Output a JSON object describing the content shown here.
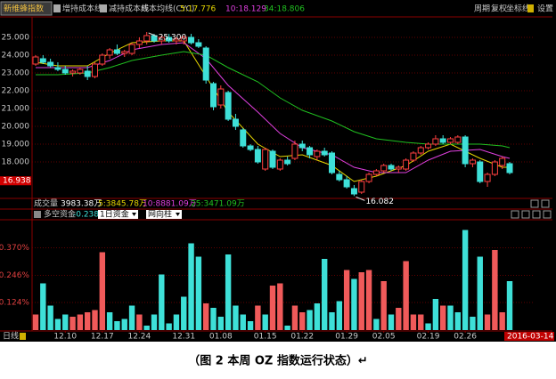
{
  "toolbar": {
    "index_name": "新维蜂指数",
    "items": [
      "增持成本线",
      "减持成本线",
      "成本均线(CYC)"
    ],
    "right": [
      "周期",
      "复权",
      "坐标线",
      "设置"
    ]
  },
  "chart_data": {
    "type": "candlestick",
    "categories": [
      null,
      null,
      null,
      null,
      "12.10",
      null,
      null,
      null,
      null,
      "12.17",
      null,
      null,
      null,
      null,
      "12.24",
      null,
      null,
      null,
      null,
      null,
      "12.31",
      null,
      null,
      null,
      null,
      "01.08",
      null,
      null,
      null,
      null,
      null,
      "01.15",
      null,
      null,
      null,
      null,
      "01.22",
      null,
      null,
      null,
      null,
      null,
      "01.29",
      null,
      null,
      null,
      null,
      "02.05",
      null,
      null,
      null,
      null,
      null,
      "02.19",
      null,
      null,
      null,
      null,
      "02.26",
      null,
      null,
      null,
      null,
      null,
      null
    ],
    "open": [
      23.5,
      23.8,
      23.6,
      23.3,
      23.2,
      23.0,
      23.0,
      23.1,
      22.8,
      23.5,
      24.0,
      24.3,
      24.1,
      24.1,
      24.6,
      24.8,
      25.1,
      24.8,
      25.0,
      24.8,
      24.8,
      25.0,
      24.7,
      24.4,
      22.4,
      21.2,
      21.9,
      20.4,
      19.8,
      18.9,
      18.7,
      17.6,
      18.6,
      17.6,
      18.1,
      18.2,
      19.0,
      18.8,
      18.3,
      18.6,
      18.5,
      17.3,
      17.0,
      16.5,
      16.3,
      16.9,
      17.3,
      17.5,
      17.8,
      17.6,
      17.6,
      18.1,
      18.5,
      18.8,
      19.0,
      19.3,
      19.1,
      19.1,
      19.4,
      17.9,
      18.0,
      16.9,
      17.3,
      17.8,
      17.9
    ],
    "high": [
      24.0,
      24.0,
      23.8,
      23.6,
      23.4,
      23.2,
      23.3,
      23.4,
      23.6,
      24.1,
      24.4,
      24.6,
      24.3,
      24.7,
      25.0,
      25.3,
      25.2,
      25.1,
      25.2,
      25.0,
      25.1,
      25.2,
      24.9,
      24.5,
      22.5,
      22.3,
      22.0,
      20.7,
      19.9,
      19.0,
      18.9,
      18.8,
      18.7,
      18.2,
      18.3,
      19.2,
      19.2,
      18.9,
      18.7,
      18.8,
      18.6,
      17.5,
      17.2,
      16.7,
      17.0,
      17.4,
      17.6,
      17.9,
      17.9,
      17.8,
      18.2,
      18.6,
      18.9,
      19.1,
      19.5,
      19.5,
      19.4,
      19.5,
      19.5,
      18.2,
      18.1,
      17.4,
      18.1,
      18.3,
      18.0
    ],
    "low": [
      23.4,
      23.5,
      23.3,
      23.1,
      22.9,
      22.8,
      22.9,
      22.6,
      22.7,
      23.4,
      23.8,
      24.0,
      23.9,
      24.0,
      24.4,
      24.6,
      24.7,
      24.6,
      24.7,
      24.6,
      24.6,
      24.6,
      24.4,
      22.4,
      20.9,
      21.0,
      20.3,
      19.8,
      18.8,
      18.6,
      17.9,
      17.5,
      17.6,
      17.5,
      17.8,
      18.1,
      18.6,
      18.2,
      18.1,
      18.3,
      17.3,
      16.9,
      16.5,
      16.082,
      16.2,
      16.8,
      17.2,
      17.4,
      17.5,
      17.4,
      17.5,
      18.0,
      18.4,
      18.7,
      18.9,
      19.0,
      19.0,
      19.0,
      17.7,
      17.7,
      16.8,
      16.6,
      17.2,
      17.6,
      17.3
    ],
    "close": [
      23.9,
      23.6,
      23.4,
      23.2,
      23.0,
      23.1,
      23.2,
      22.8,
      23.5,
      24.0,
      24.3,
      24.1,
      24.2,
      24.6,
      24.8,
      25.1,
      24.8,
      25.0,
      24.8,
      24.9,
      25.0,
      24.7,
      24.5,
      22.6,
      21.1,
      22.1,
      20.4,
      20.0,
      18.9,
      18.7,
      18.0,
      18.7,
      17.7,
      18.1,
      17.9,
      19.0,
      18.8,
      18.4,
      18.6,
      18.4,
      17.4,
      17.0,
      16.6,
      16.2,
      16.9,
      17.3,
      17.5,
      17.8,
      17.6,
      17.7,
      18.1,
      18.5,
      18.8,
      19.0,
      19.3,
      19.1,
      19.3,
      19.4,
      17.9,
      18.1,
      16.9,
      17.3,
      18.0,
      18.2,
      17.4
    ],
    "up_color": "#ff4040",
    "down_color": "#3ee0d8",
    "ylim": [
      16,
      26
    ],
    "yticks": [
      {
        "value": 25,
        "label": "25.000"
      },
      {
        "value": 24,
        "label": "24.000"
      },
      {
        "value": 23,
        "label": "23.000"
      },
      {
        "value": 22,
        "label": "22.000"
      },
      {
        "value": 21,
        "label": "21.000"
      },
      {
        "value": 20,
        "label": "20.000"
      },
      {
        "value": 19,
        "label": "19.000"
      },
      {
        "value": 18,
        "label": "18.000"
      }
    ],
    "current_price": 16.938,
    "lines": [
      {
        "label": "5:17.776",
        "color": "#e8d800",
        "x": [
          0,
          3,
          7,
          10,
          13,
          17,
          20,
          23,
          26,
          30,
          33,
          36,
          40,
          43,
          46,
          50,
          53,
          56,
          60,
          63,
          64
        ],
        "values": [
          23.6,
          23.4,
          23.4,
          24.1,
          24.7,
          24.8,
          24.8,
          22.8,
          20.8,
          19.0,
          18.3,
          18.4,
          17.8,
          16.9,
          17.2,
          17.8,
          18.6,
          19.0,
          18.2,
          17.7,
          17.7
        ]
      },
      {
        "label": "10:18.129",
        "color": "#e040e0",
        "x": [
          0,
          3,
          7,
          10,
          13,
          17,
          20,
          23,
          26,
          30,
          33,
          36,
          40,
          43,
          46,
          50,
          53,
          56,
          60,
          63,
          64
        ],
        "values": [
          23.3,
          23.3,
          23.3,
          23.7,
          24.3,
          24.6,
          24.7,
          23.8,
          22.3,
          20.8,
          19.6,
          18.8,
          18.4,
          17.7,
          17.4,
          17.4,
          18.1,
          18.6,
          18.7,
          18.3,
          18.2
        ]
      },
      {
        "label": "34:18.806",
        "color": "#20c020",
        "x": [
          0,
          3,
          7,
          10,
          13,
          17,
          20,
          23,
          26,
          30,
          33,
          36,
          40,
          43,
          46,
          50,
          53,
          56,
          60,
          63,
          64
        ],
        "values": [
          22.9,
          22.9,
          23.0,
          23.3,
          23.7,
          24.0,
          24.2,
          24.0,
          23.3,
          22.5,
          21.6,
          20.9,
          20.3,
          19.7,
          19.3,
          19.1,
          19.0,
          19.0,
          19.0,
          18.9,
          18.8
        ]
      }
    ],
    "annotations": [
      {
        "x": 15,
        "value": 25.3,
        "label": "25.300"
      },
      {
        "x": 43,
        "value": 16.082
      }
    ],
    "volume_info": {
      "title": "成交量",
      "items": [
        {
          "label": "3983.38万",
          "color": "#ffffff"
        },
        {
          "label": "5:3845.78万",
          "color": "#e8d800"
        },
        {
          "label": "10:8881.09万",
          "color": "#e040e0"
        },
        {
          "label": "25:3471.09万",
          "color": "#20c020"
        }
      ]
    },
    "indicator": {
      "type": "bar",
      "title": "多空资金",
      "value_label": "-0.238%",
      "selectors": [
        "1日资金",
        "网向柱"
      ],
      "values": [
        0.07,
        0.21,
        0.11,
        0.05,
        0.07,
        0.06,
        0.07,
        0.08,
        0.09,
        0.35,
        0.08,
        0.04,
        0.05,
        0.11,
        0.07,
        0.02,
        0.07,
        0.25,
        0.03,
        0.07,
        0.15,
        0.39,
        0.33,
        0.12,
        0.1,
        0.06,
        0.34,
        0.11,
        0.07,
        0.04,
        0.11,
        0.07,
        0.2,
        0.21,
        0.02,
        0.11,
        0.08,
        0.09,
        0.12,
        0.32,
        0.08,
        0.13,
        0.27,
        0.23,
        0.26,
        0.27,
        0.05,
        0.22,
        0.07,
        0.1,
        0.31,
        0.07,
        0.07,
        0.03,
        0.14,
        0.11,
        0.11,
        0.08,
        0.45,
        0.06,
        0.33,
        0.07,
        0.36,
        0.08,
        0.22
      ],
      "colors": [
        "#f05a5a",
        "#3ee0d8",
        "#3ee0d8",
        "#3ee0d8",
        "#3ee0d8",
        "#f05a5a",
        "#f05a5a",
        "#f05a5a",
        "#f05a5a",
        "#f05a5a",
        "#3ee0d8",
        "#3ee0d8",
        "#3ee0d8",
        "#3ee0d8",
        "#f05a5a",
        "#3ee0d8",
        "#3ee0d8",
        "#3ee0d8",
        "#3ee0d8",
        "#3ee0d8",
        "#3ee0d8",
        "#3ee0d8",
        "#3ee0d8",
        "#f05a5a",
        "#3ee0d8",
        "#3ee0d8",
        "#3ee0d8",
        "#3ee0d8",
        "#3ee0d8",
        "#3ee0d8",
        "#f05a5a",
        "#3ee0d8",
        "#f05a5a",
        "#f05a5a",
        "#3ee0d8",
        "#f05a5a",
        "#f05a5a",
        "#3ee0d8",
        "#3ee0d8",
        "#3ee0d8",
        "#3ee0d8",
        "#3ee0d8",
        "#f05a5a",
        "#3ee0d8",
        "#f05a5a",
        "#f05a5a",
        "#3ee0d8",
        "#f05a5a",
        "#3ee0d8",
        "#f05a5a",
        "#f05a5a",
        "#f05a5a",
        "#f05a5a",
        "#3ee0d8",
        "#3ee0d8",
        "#f05a5a",
        "#3ee0d8",
        "#3ee0d8",
        "#3ee0d8",
        "#3ee0d8",
        "#3ee0d8",
        "#f05a5a",
        "#f05a5a",
        "#f05a5a",
        "#3ee0d8"
      ],
      "ylim": [
        0,
        0.48
      ],
      "yticks": [
        {
          "value": 0.37,
          "label": "0.370%"
        },
        {
          "value": 0.246,
          "label": "0.246%"
        },
        {
          "value": 0.124,
          "label": "0.124%"
        }
      ]
    },
    "period_label": "日线",
    "cursor_date": "2016-03-14"
  },
  "caption": "（图 2 本周 OZ 指数运行状态）↵"
}
